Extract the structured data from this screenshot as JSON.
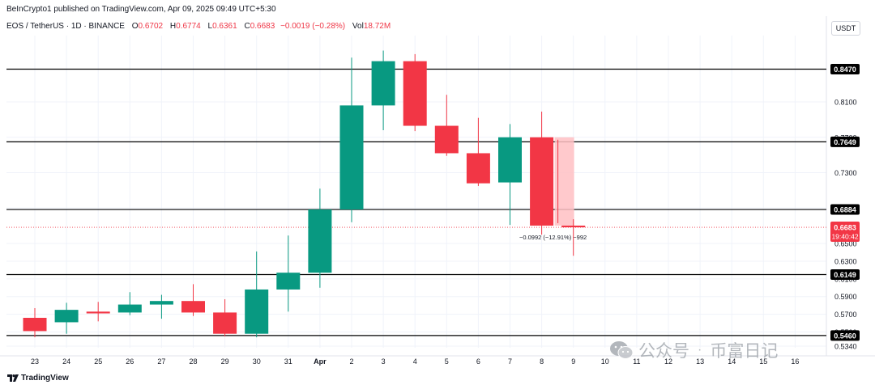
{
  "header": {
    "published": "BeInCrypto1 published on TradingView.com, Apr 09, 2025 09:49 UTC+5:30",
    "symbol": "EOS / TetherUS · 1D · BINANCE",
    "o_label": "O",
    "o": "0.6702",
    "h_label": "H",
    "h": "0.6774",
    "l_label": "L",
    "l": "0.6361",
    "c_label": "C",
    "c": "0.6683",
    "change": "−0.0019 (−0.28%)",
    "vol_label": "Vol",
    "vol": "18.72M",
    "currency": "USDT"
  },
  "footer": {
    "brand": "TradingView"
  },
  "watermark": {
    "text1": "公众号",
    "dot": "·",
    "text2": "币富日记"
  },
  "colors": {
    "up": "#089981",
    "down": "#f23645",
    "level": "#000000",
    "range": "#ffbfc3",
    "price_label": "#f23645"
  },
  "chart_data": {
    "type": "candlestick",
    "ylim": [
      0.534,
      0.863
    ],
    "x_labels": [
      "23",
      "24",
      "25",
      "26",
      "27",
      "28",
      "29",
      "30",
      "31",
      "Apr",
      "2",
      "3",
      "4",
      "5",
      "6",
      "7",
      "8",
      "9",
      "10",
      "11",
      "12",
      "13",
      "14",
      "15",
      "16"
    ],
    "y_ticks": [
      0.847,
      0.81,
      0.77,
      0.73,
      0.69,
      0.65,
      0.63,
      0.61,
      0.59,
      0.57,
      0.55,
      0.534
    ],
    "horizontal_levels": [
      0.847,
      0.7649,
      0.6884,
      0.6149,
      0.546
    ],
    "level_labels": [
      "0.8470",
      "0.7649",
      "0.6884",
      "0.6149",
      "0.5460"
    ],
    "candles": [
      {
        "x": "23",
        "o": 0.566,
        "h": 0.577,
        "l": 0.544,
        "c": 0.551
      },
      {
        "x": "24",
        "o": 0.561,
        "h": 0.583,
        "l": 0.548,
        "c": 0.575
      },
      {
        "x": "25",
        "o": 0.573,
        "h": 0.584,
        "l": 0.562,
        "c": 0.571
      },
      {
        "x": "26",
        "o": 0.572,
        "h": 0.595,
        "l": 0.569,
        "c": 0.581
      },
      {
        "x": "27",
        "o": 0.581,
        "h": 0.592,
        "l": 0.565,
        "c": 0.585
      },
      {
        "x": "28",
        "o": 0.585,
        "h": 0.604,
        "l": 0.568,
        "c": 0.572
      },
      {
        "x": "29",
        "o": 0.572,
        "h": 0.587,
        "l": 0.545,
        "c": 0.548
      },
      {
        "x": "30",
        "o": 0.548,
        "h": 0.641,
        "l": 0.544,
        "c": 0.598
      },
      {
        "x": "31",
        "o": 0.598,
        "h": 0.659,
        "l": 0.573,
        "c": 0.617
      },
      {
        "x": "Apr",
        "o": 0.617,
        "h": 0.712,
        "l": 0.6,
        "c": 0.6884
      },
      {
        "x": "2",
        "o": 0.6884,
        "h": 0.86,
        "l": 0.674,
        "c": 0.806
      },
      {
        "x": "3",
        "o": 0.806,
        "h": 0.868,
        "l": 0.778,
        "c": 0.856
      },
      {
        "x": "4",
        "o": 0.856,
        "h": 0.864,
        "l": 0.777,
        "c": 0.783
      },
      {
        "x": "5",
        "o": 0.783,
        "h": 0.818,
        "l": 0.749,
        "c": 0.752
      },
      {
        "x": "6",
        "o": 0.752,
        "h": 0.792,
        "l": 0.715,
        "c": 0.718
      },
      {
        "x": "7",
        "o": 0.719,
        "h": 0.785,
        "l": 0.671,
        "c": 0.77
      },
      {
        "x": "8",
        "o": 0.77,
        "h": 0.799,
        "l": 0.66,
        "c": 0.6702
      },
      {
        "x": "9",
        "o": 0.6702,
        "h": 0.6774,
        "l": 0.6361,
        "c": 0.6683
      }
    ],
    "range_box": {
      "from": 0.77,
      "to": 0.6702,
      "label": "−0.0992 (−12.91%) −992"
    },
    "last_price": {
      "value": 0.6683,
      "label": "0.6683",
      "countdown": "19:40:42"
    }
  }
}
